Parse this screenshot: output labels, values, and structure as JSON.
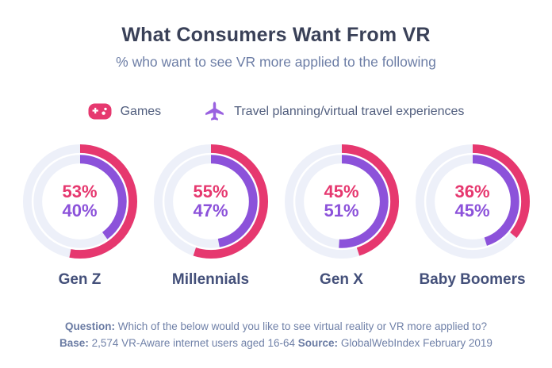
{
  "header": {
    "title": "What Consumers Want From VR",
    "subtitle": "% who want to see VR more applied to the following"
  },
  "legend": {
    "items": [
      {
        "icon": "gamepad-icon",
        "label": "Games",
        "color": "#e6386f"
      },
      {
        "icon": "airplane-icon",
        "label": "Travel planning/virtual travel experiences",
        "color": "#9a62e0"
      }
    ]
  },
  "chart_data": {
    "type": "donut",
    "title": "What Consumers Want From VR",
    "subtitle": "% who want to see VR more applied to the following",
    "categories": [
      "Gen Z",
      "Millennials",
      "Gen X",
      "Baby Boomers"
    ],
    "series": [
      {
        "name": "Games",
        "color": "#e6386f",
        "values": [
          53,
          55,
          45,
          36
        ]
      },
      {
        "name": "Travel planning/virtual travel experiences",
        "color": "#8c52da",
        "values": [
          40,
          47,
          51,
          45
        ]
      }
    ],
    "value_format": "percent",
    "value_range": [
      0,
      100
    ],
    "track_color": "#edf0f9",
    "start_angle_deg": 0,
    "direction": "clockwise",
    "legend_position": "top",
    "ring_order": [
      "Games",
      "Travel planning/virtual travel experiences"
    ]
  },
  "footer": {
    "question_label": "Question:",
    "question_text": "Which of the below would you like to see virtual reality or VR more applied to?",
    "base_label": "Base:",
    "base_text": "2,574 VR-Aware internet users aged 16-64",
    "source_label": "Source:",
    "source_text": "GlobalWebIndex February 2019"
  }
}
